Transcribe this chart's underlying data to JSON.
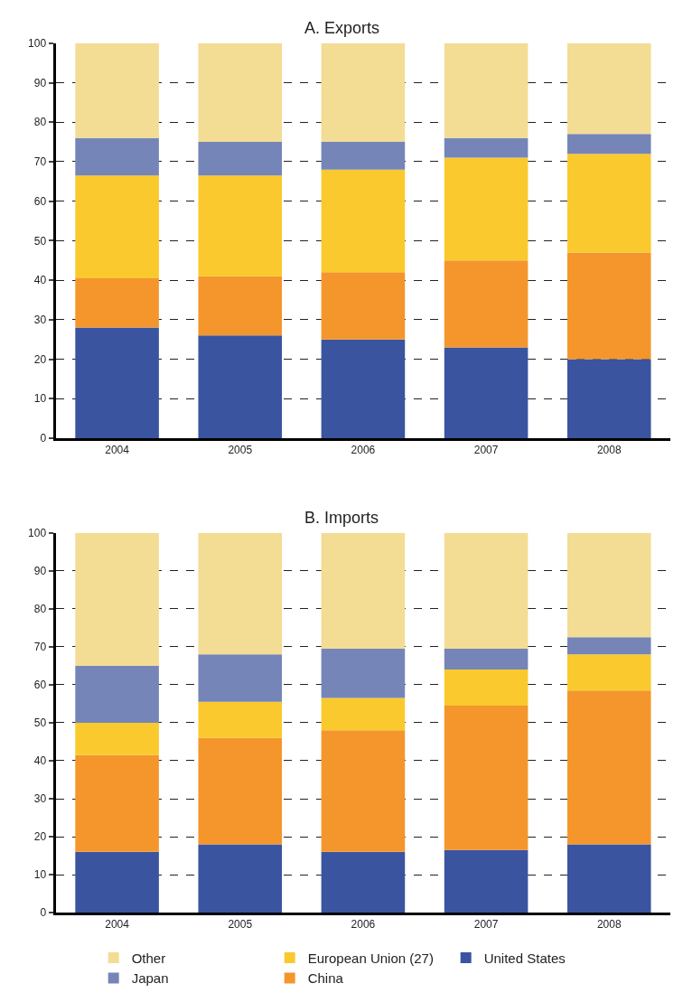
{
  "chart_data": [
    {
      "type": "bar",
      "title": "A. Exports",
      "stacked": true,
      "categories": [
        "2004",
        "2005",
        "2006",
        "2007",
        "2008"
      ],
      "ylim": [
        0,
        100
      ],
      "yticks": [
        0,
        10,
        20,
        30,
        40,
        50,
        60,
        70,
        80,
        90,
        100
      ],
      "grid": "y",
      "legend": "bottom",
      "series": [
        {
          "name": "United States",
          "color": "#3a54a0",
          "values": [
            28,
            26,
            25,
            23,
            20
          ]
        },
        {
          "name": "China",
          "color": "#f4962c",
          "values": [
            12.5,
            15,
            17,
            22,
            27
          ]
        },
        {
          "name": "European Union (27)",
          "color": "#fac92e",
          "values": [
            26,
            25.5,
            26,
            26,
            25
          ]
        },
        {
          "name": "Japan",
          "color": "#7585b8",
          "values": [
            9.5,
            8.5,
            7,
            5,
            5
          ]
        },
        {
          "name": "Other",
          "color": "#f3dc94",
          "values": [
            24,
            25,
            25,
            24,
            23
          ]
        }
      ]
    },
    {
      "type": "bar",
      "title": "B. Imports",
      "stacked": true,
      "categories": [
        "2004",
        "2005",
        "2006",
        "2007",
        "2008"
      ],
      "ylim": [
        0,
        100
      ],
      "yticks": [
        0,
        10,
        20,
        30,
        40,
        50,
        60,
        70,
        80,
        90,
        100
      ],
      "grid": "y",
      "series": [
        {
          "color": "#3a54a0",
          "values": [
            16,
            18,
            16,
            16.5,
            18
          ]
        },
        {
          "color": "#f4962c",
          "values": [
            25.5,
            28,
            32,
            38,
            40.5
          ]
        },
        {
          "color": "#fac92e",
          "values": [
            8.5,
            9.5,
            8.5,
            9.5,
            9.5
          ]
        },
        {
          "color": "#7585b8",
          "values": [
            15,
            12.5,
            13,
            5.5,
            4.5
          ]
        },
        {
          "color": "#f3dc94",
          "values": [
            35,
            32,
            30.5,
            30.5,
            27.5
          ]
        }
      ]
    }
  ]
}
